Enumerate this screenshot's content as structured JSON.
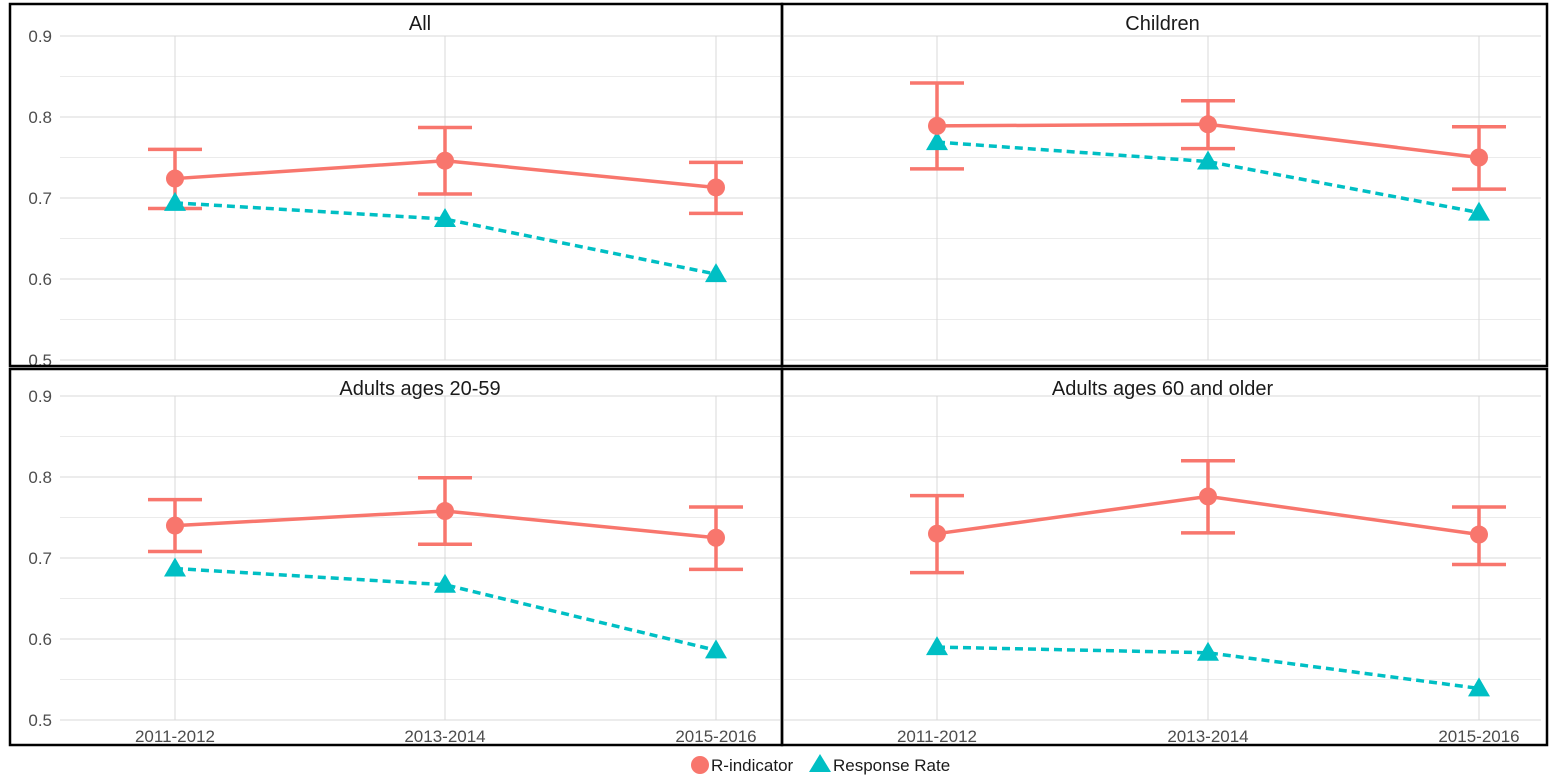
{
  "chart_data": {
    "type": "line",
    "categories": [
      "2011-2012",
      "2013-2014",
      "2015-2016"
    ],
    "ylim": [
      0.5,
      0.9
    ],
    "yticks": [
      "0.5",
      "0.6",
      "0.7",
      "0.8",
      "0.9"
    ],
    "grid": true,
    "legend_position": "bottom",
    "legend": [
      {
        "label": "R-indicator",
        "marker": "circle",
        "color": "#F8766D",
        "line": "solid"
      },
      {
        "label": "Response Rate",
        "marker": "triangle",
        "color": "#00BFC4",
        "line": "dashed"
      }
    ],
    "panels": [
      {
        "title": "All",
        "r_indicator": [
          0.724,
          0.746,
          0.713
        ],
        "r_lower": [
          0.687,
          0.705,
          0.681
        ],
        "r_upper": [
          0.76,
          0.787,
          0.744
        ],
        "response_rate": [
          0.694,
          0.674,
          0.606
        ]
      },
      {
        "title": "Children",
        "r_indicator": [
          0.789,
          0.791,
          0.75
        ],
        "r_lower": [
          0.736,
          0.761,
          0.711
        ],
        "r_upper": [
          0.842,
          0.82,
          0.788
        ],
        "response_rate": [
          0.769,
          0.745,
          0.682
        ]
      },
      {
        "title": "Adults ages 20-59",
        "r_indicator": [
          0.74,
          0.758,
          0.725
        ],
        "r_lower": [
          0.708,
          0.717,
          0.686
        ],
        "r_upper": [
          0.772,
          0.799,
          0.763
        ],
        "response_rate": [
          0.687,
          0.667,
          0.586
        ]
      },
      {
        "title": "Adults ages 60 and older",
        "r_indicator": [
          0.73,
          0.776,
          0.729
        ],
        "r_lower": [
          0.682,
          0.731,
          0.692
        ],
        "r_upper": [
          0.777,
          0.82,
          0.763
        ],
        "response_rate": [
          0.59,
          0.583,
          0.539
        ]
      }
    ]
  }
}
